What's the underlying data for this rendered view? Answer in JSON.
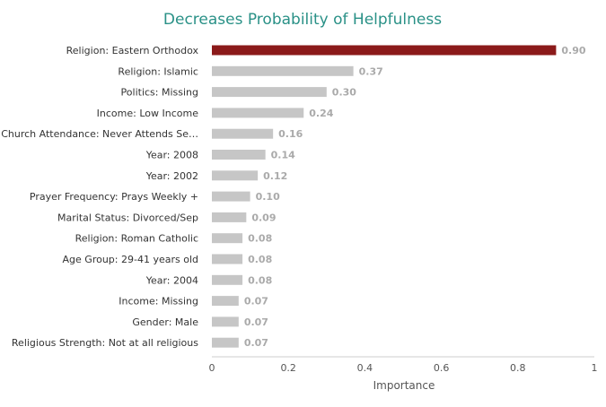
{
  "chart_data": {
    "type": "bar",
    "orientation": "horizontal",
    "title": "Decreases Probability of Helpfulness",
    "xlabel": "Importance",
    "ylabel": "",
    "xlim": [
      0,
      1
    ],
    "x_ticks": [
      "0",
      "0.2",
      "0.4",
      "0.6",
      "0.8",
      "1"
    ],
    "x_tick_values": [
      0,
      0.2,
      0.4,
      0.6,
      0.8,
      1
    ],
    "grid": false,
    "categories": [
      "Religion: Eastern Orthodox",
      "Religion: Islamic",
      "Politics: Missing",
      "Income: Low Income",
      "Church Attendance: Never Attends Se…",
      "Year: 2008",
      "Year: 2002",
      "Prayer Frequency: Prays Weekly +",
      "Marital Status: Divorced/Sep",
      "Religion: Roman Catholic",
      "Age Group: 29-41 years old",
      "Year: 2004",
      "Income: Missing",
      "Gender: Male",
      "Religious Strength: Not at all religious"
    ],
    "values": [
      0.9,
      0.37,
      0.3,
      0.24,
      0.16,
      0.14,
      0.12,
      0.1,
      0.09,
      0.08,
      0.08,
      0.08,
      0.07,
      0.07,
      0.07
    ],
    "value_labels": [
      "0.90",
      "0.37",
      "0.30",
      "0.24",
      "0.16",
      "0.14",
      "0.12",
      "0.10",
      "0.09",
      "0.08",
      "0.08",
      "0.08",
      "0.07",
      "0.07",
      "0.07"
    ],
    "highlight_index": 0,
    "colors": {
      "title": "#2a9187",
      "highlight_bar": "#8b1a1a",
      "bar": "#c6c6c6",
      "value_label": "#aaaaaa",
      "category_label": "#333333",
      "axis": "#555555"
    }
  }
}
